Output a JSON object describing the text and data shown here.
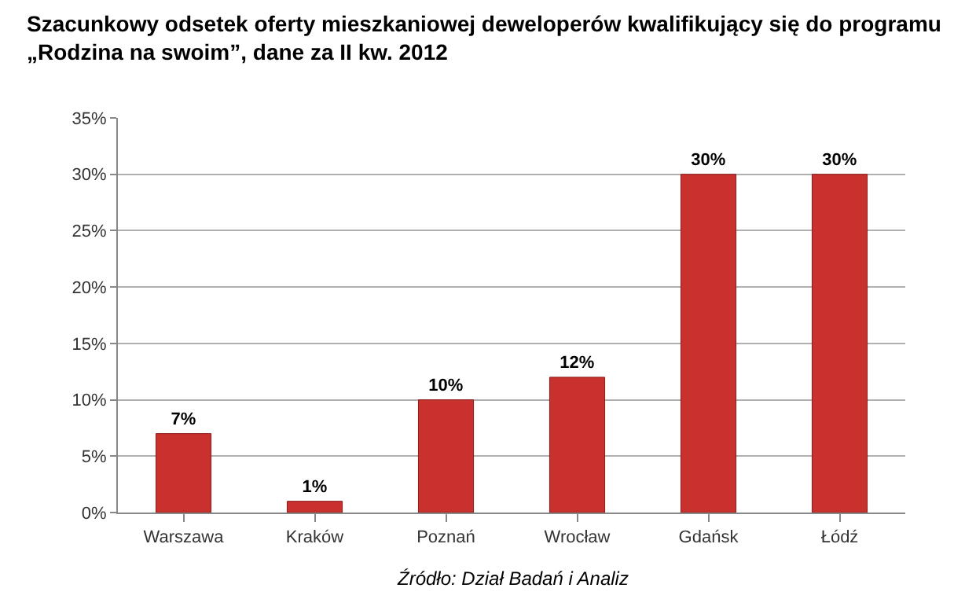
{
  "chart_data": {
    "type": "bar",
    "title": "Szacunkowy odsetek oferty mieszkaniowej deweloperów kwalifikujący się do programu „Rodzina na swoim”, dane za II kw. 2012",
    "categories": [
      "Warszawa",
      "Kraków",
      "Poznań",
      "Wrocław",
      "Gdańsk",
      "Łódź"
    ],
    "values": [
      7,
      1,
      10,
      12,
      30,
      30
    ],
    "value_labels": [
      "7%",
      "1%",
      "10%",
      "12%",
      "30%",
      "30%"
    ],
    "color": "#c8312e",
    "ylim": [
      0,
      35
    ],
    "yticks": [
      {
        "value": 0,
        "label": "0%"
      },
      {
        "value": 5,
        "label": "5%"
      },
      {
        "value": 10,
        "label": "10%"
      },
      {
        "value": 15,
        "label": "15%"
      },
      {
        "value": 20,
        "label": "20%"
      },
      {
        "value": 25,
        "label": "25%"
      },
      {
        "value": 30,
        "label": "30%"
      },
      {
        "value": 35,
        "label": "35%"
      }
    ],
    "grid": "y",
    "annotations": [
      "Źródło: Dział Badań i Analiz"
    ]
  }
}
